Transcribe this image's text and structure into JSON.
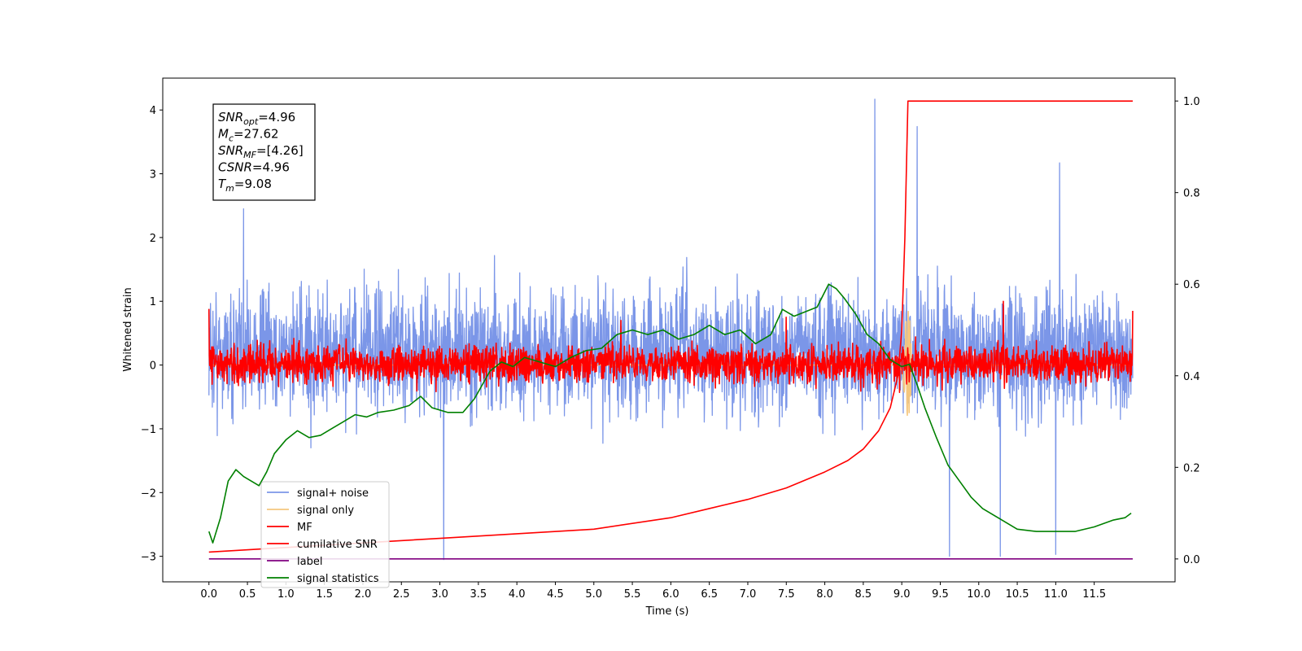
{
  "chart_data": {
    "type": "line",
    "xlabel": "Time (s)",
    "ylabel": "Whitened strain",
    "xlim": [
      -0.6,
      12.55
    ],
    "ylim": [
      -3.4,
      4.5
    ],
    "y2lim": [
      -0.05,
      1.05
    ],
    "x_ticks": [
      "0.0",
      "0.5",
      "1.0",
      "1.5",
      "2.0",
      "2.5",
      "3.0",
      "3.5",
      "4.0",
      "4.5",
      "5.0",
      "5.5",
      "6.0",
      "6.5",
      "7.0",
      "7.5",
      "8.0",
      "8.5",
      "9.0",
      "9.5",
      "10.0",
      "10.5",
      "11.0",
      "11.5"
    ],
    "y_ticks": [
      "−3",
      "−2",
      "−1",
      "0",
      "1",
      "2",
      "3",
      "4"
    ],
    "y2_ticks": [
      "0.0",
      "0.2",
      "0.4",
      "0.6",
      "0.8",
      "1.0"
    ],
    "info_box": [
      {
        "sym": "SNR",
        "sub": "opt",
        "val": "=4.96"
      },
      {
        "sym": "M",
        "sub": "c",
        "val": "=27.62"
      },
      {
        "sym": "SNR",
        "sub": "MF",
        "val": "=[4.26]"
      },
      {
        "sym": "CSNR",
        "sub": "",
        "val": "=4.96"
      },
      {
        "sym": "T",
        "sub": "m",
        "val": "=9.08"
      }
    ],
    "series": [
      {
        "name": "signal+ noise",
        "color": "#7b96e8",
        "axis": "left",
        "kind": "noise",
        "x_range": [
          0,
          12
        ],
        "amplitude_range": [
          -3.05,
          4.17
        ],
        "typical_band": [
          -1.8,
          2.3
        ]
      },
      {
        "name": "signal only",
        "color": "#f5c77e",
        "axis": "left",
        "kind": "chirp",
        "x_range": [
          0,
          12
        ],
        "peak_time": 9.08,
        "peak_range": [
          -0.8,
          0.9
        ]
      },
      {
        "name": "MF",
        "color": "#ff0000",
        "axis": "left",
        "kind": "noise",
        "x_range": [
          0,
          12
        ],
        "typical_band": [
          -0.45,
          0.5
        ],
        "spikes": [
          [
            0.0,
            0.88
          ],
          [
            11.98,
            0.85
          ]
        ]
      },
      {
        "name": "cumilative SNR",
        "color": "#ff0000",
        "axis": "right",
        "x": [
          0,
          1,
          2,
          3,
          4,
          5,
          6,
          6.5,
          7,
          7.5,
          8,
          8.3,
          8.5,
          8.7,
          8.85,
          8.95,
          9.0,
          9.04,
          9.08,
          9.1,
          12
        ],
        "values": [
          0.015,
          0.025,
          0.035,
          0.045,
          0.055,
          0.065,
          0.09,
          0.11,
          0.13,
          0.155,
          0.19,
          0.215,
          0.24,
          0.28,
          0.33,
          0.4,
          0.5,
          0.7,
          1.0,
          1.0,
          1.0
        ]
      },
      {
        "name": "label",
        "color": "#800080",
        "axis": "right",
        "x": [
          0,
          12
        ],
        "values": [
          0.0,
          0.0
        ]
      },
      {
        "name": "signal statistics",
        "color": "#008000",
        "axis": "right",
        "x": [
          0,
          0.05,
          0.15,
          0.25,
          0.35,
          0.45,
          0.55,
          0.65,
          0.75,
          0.85,
          1.0,
          1.15,
          1.3,
          1.45,
          1.6,
          1.75,
          1.9,
          2.05,
          2.2,
          2.4,
          2.6,
          2.75,
          2.9,
          3.1,
          3.3,
          3.45,
          3.55,
          3.65,
          3.8,
          3.95,
          4.1,
          4.3,
          4.5,
          4.7,
          4.9,
          5.1,
          5.3,
          5.5,
          5.7,
          5.9,
          6.1,
          6.3,
          6.5,
          6.7,
          6.9,
          7.1,
          7.3,
          7.45,
          7.6,
          7.75,
          7.9,
          8.05,
          8.15,
          8.25,
          8.4,
          8.55,
          8.7,
          8.85,
          9.0,
          9.1,
          9.2,
          9.3,
          9.45,
          9.6,
          9.75,
          9.9,
          10.05,
          10.25,
          10.5,
          10.75,
          11.0,
          11.25,
          11.5,
          11.75,
          11.9,
          11.98
        ],
        "values": [
          0.06,
          0.035,
          0.09,
          0.17,
          0.195,
          0.18,
          0.17,
          0.16,
          0.19,
          0.23,
          0.26,
          0.28,
          0.265,
          0.27,
          0.285,
          0.3,
          0.315,
          0.31,
          0.32,
          0.325,
          0.335,
          0.355,
          0.33,
          0.32,
          0.32,
          0.35,
          0.38,
          0.41,
          0.43,
          0.42,
          0.44,
          0.43,
          0.42,
          0.44,
          0.455,
          0.46,
          0.49,
          0.5,
          0.49,
          0.5,
          0.48,
          0.49,
          0.51,
          0.49,
          0.5,
          0.47,
          0.49,
          0.545,
          0.53,
          0.54,
          0.55,
          0.6,
          0.59,
          0.57,
          0.535,
          0.49,
          0.47,
          0.435,
          0.42,
          0.425,
          0.38,
          0.33,
          0.265,
          0.205,
          0.17,
          0.135,
          0.11,
          0.09,
          0.065,
          0.06,
          0.06,
          0.06,
          0.07,
          0.085,
          0.09,
          0.1
        ]
      }
    ],
    "legend_position": "lower left",
    "grid": false
  }
}
